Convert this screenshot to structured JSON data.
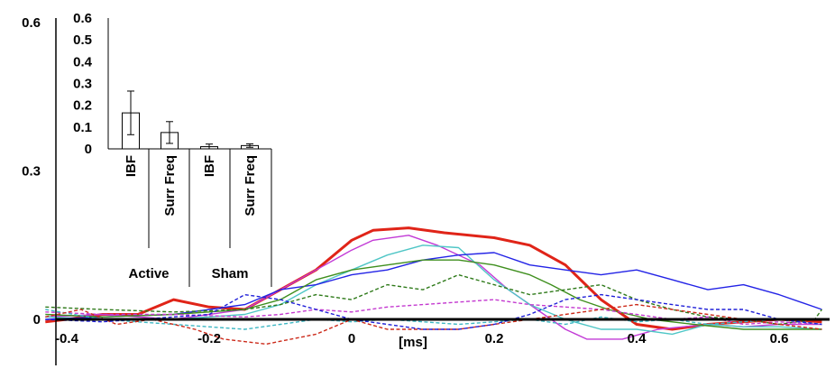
{
  "chart_data": [
    {
      "type": "line",
      "title": "",
      "xlabel": "[ms]",
      "ylabel": "",
      "xlim": [
        -0.43,
        0.66
      ],
      "ylim": [
        -0.12,
        0.6
      ],
      "x_ticks": [
        "-0.4",
        "-0.2",
        "0",
        "0.2",
        "0.4",
        "0.6"
      ],
      "y_ticks": [
        "0",
        "0.3",
        "0.6"
      ],
      "grid": false,
      "colors": {
        "red": "#e02418",
        "magenta": "#c23ad6",
        "cyan": "#4fc6c6",
        "blue": "#2323e6",
        "green": "#3f8f1e",
        "darkgreen": "#2f7a1a",
        "purple": "#c43ad0",
        "lightcyan": "#3fb8c4",
        "darkred": "#cc2a1a",
        "bluedash": "#2020d8"
      },
      "series": [
        {
          "color": "red",
          "dash": false,
          "width": 3,
          "x": [
            -0.43,
            -0.4,
            -0.35,
            -0.3,
            -0.25,
            -0.2,
            -0.15,
            -0.1,
            -0.05,
            0,
            0.03,
            0.08,
            0.13,
            0.2,
            0.25,
            0.3,
            0.35,
            0.4,
            0.45,
            0.5,
            0.55,
            0.6,
            0.66
          ],
          "y": [
            -0.005,
            0.0,
            0.01,
            0.01,
            0.04,
            0.025,
            0.02,
            0.06,
            0.1,
            0.16,
            0.18,
            0.185,
            0.175,
            0.165,
            0.15,
            0.11,
            0.04,
            -0.01,
            -0.02,
            -0.01,
            -0.005,
            0.0,
            -0.005
          ]
        },
        {
          "color": "magenta",
          "dash": false,
          "width": 1.4,
          "x": [
            -0.43,
            -0.35,
            -0.25,
            -0.15,
            -0.1,
            -0.05,
            0,
            0.03,
            0.08,
            0.12,
            0.18,
            0.22,
            0.26,
            0.3,
            0.33,
            0.38,
            0.43,
            0.5,
            0.55,
            0.6,
            0.66
          ],
          "y": [
            0.005,
            0.01,
            0.0,
            0.02,
            0.06,
            0.1,
            0.14,
            0.16,
            0.17,
            0.15,
            0.11,
            0.06,
            0.02,
            -0.02,
            -0.04,
            -0.04,
            -0.02,
            -0.01,
            -0.015,
            -0.01,
            -0.01
          ]
        },
        {
          "color": "cyan",
          "dash": false,
          "width": 1.4,
          "x": [
            -0.43,
            -0.35,
            -0.25,
            -0.15,
            -0.1,
            -0.05,
            0,
            0.05,
            0.1,
            0.15,
            0.2,
            0.25,
            0.3,
            0.35,
            0.4,
            0.45,
            0.5,
            0.55,
            0.6,
            0.66
          ],
          "y": [
            0.005,
            0.0,
            0.0,
            0.01,
            0.03,
            0.07,
            0.1,
            0.13,
            0.15,
            0.145,
            0.08,
            0.03,
            0.0,
            -0.02,
            -0.02,
            -0.03,
            -0.01,
            -0.015,
            -0.015,
            -0.02
          ]
        },
        {
          "color": "blue",
          "dash": false,
          "width": 1.4,
          "x": [
            -0.43,
            -0.35,
            -0.25,
            -0.15,
            -0.1,
            -0.05,
            0,
            0.05,
            0.1,
            0.15,
            0.2,
            0.25,
            0.3,
            0.35,
            0.4,
            0.45,
            0.5,
            0.55,
            0.6,
            0.66
          ],
          "y": [
            0.0,
            0.005,
            0.01,
            0.03,
            0.06,
            0.07,
            0.09,
            0.1,
            0.12,
            0.13,
            0.135,
            0.11,
            0.1,
            0.09,
            0.1,
            0.08,
            0.06,
            0.07,
            0.05,
            0.02
          ]
        },
        {
          "color": "green",
          "dash": false,
          "width": 1.4,
          "x": [
            -0.43,
            -0.35,
            -0.25,
            -0.15,
            -0.1,
            -0.05,
            0,
            0.05,
            0.1,
            0.15,
            0.2,
            0.25,
            0.28,
            0.32,
            0.36,
            0.42,
            0.48,
            0.55,
            0.6,
            0.66
          ],
          "y": [
            0.01,
            0.005,
            0.01,
            0.02,
            0.04,
            0.08,
            0.1,
            0.11,
            0.12,
            0.12,
            0.11,
            0.09,
            0.07,
            0.04,
            0.02,
            0.0,
            -0.01,
            -0.02,
            -0.02,
            -0.02
          ]
        },
        {
          "color": "darkgreen",
          "dash": true,
          "width": 1.4,
          "x": [
            -0.43,
            -0.35,
            -0.25,
            -0.15,
            -0.1,
            -0.05,
            0,
            0.05,
            0.1,
            0.15,
            0.2,
            0.25,
            0.3,
            0.35,
            0.4,
            0.45,
            0.5,
            0.55,
            0.6,
            0.65,
            0.66
          ],
          "y": [
            0.025,
            0.02,
            0.015,
            0.02,
            0.03,
            0.05,
            0.04,
            0.07,
            0.06,
            0.09,
            0.07,
            0.05,
            0.06,
            0.07,
            0.04,
            0.02,
            0.005,
            0.0,
            -0.01,
            0.0,
            0.02
          ]
        },
        {
          "color": "purple",
          "dash": true,
          "width": 1.4,
          "x": [
            -0.43,
            -0.35,
            -0.25,
            -0.15,
            -0.1,
            -0.05,
            0,
            0.05,
            0.1,
            0.15,
            0.2,
            0.25,
            0.3,
            0.35,
            0.4,
            0.45,
            0.5,
            0.55,
            0.6,
            0.66
          ],
          "y": [
            0.015,
            0.01,
            0.01,
            0.005,
            0.01,
            0.02,
            0.015,
            0.025,
            0.03,
            0.035,
            0.04,
            0.03,
            0.025,
            0.02,
            0.01,
            0.0,
            0.005,
            -0.01,
            -0.005,
            -0.01
          ]
        },
        {
          "color": "lightcyan",
          "dash": true,
          "width": 1.4,
          "x": [
            -0.43,
            -0.35,
            -0.25,
            -0.15,
            -0.1,
            -0.05,
            0,
            0.05,
            0.1,
            0.15,
            0.2,
            0.25,
            0.3,
            0.35,
            0.4,
            0.45,
            0.5,
            0.55,
            0.6,
            0.66
          ],
          "y": [
            0.02,
            0.0,
            -0.01,
            -0.02,
            -0.01,
            0.0,
            -0.005,
            0.0,
            -0.005,
            -0.01,
            -0.005,
            0.0,
            -0.01,
            0.005,
            -0.005,
            0.0,
            -0.01,
            -0.005,
            0.0,
            -0.01
          ]
        },
        {
          "color": "darkred",
          "dash": true,
          "width": 1.4,
          "x": [
            -0.43,
            -0.38,
            -0.33,
            -0.28,
            -0.22,
            -0.18,
            -0.12,
            -0.05,
            0,
            0.05,
            0.1,
            0.15,
            0.2,
            0.25,
            0.3,
            0.35,
            0.4,
            0.45,
            0.5,
            0.55,
            0.6,
            0.66
          ],
          "y": [
            0.005,
            0.02,
            -0.01,
            0.0,
            -0.02,
            -0.04,
            -0.05,
            -0.03,
            0.0,
            -0.02,
            -0.02,
            -0.02,
            -0.01,
            0.0,
            0.01,
            0.02,
            0.03,
            0.02,
            0.01,
            0.0,
            -0.01,
            -0.02
          ]
        },
        {
          "color": "bluedash",
          "dash": true,
          "width": 1.4,
          "x": [
            -0.43,
            -0.35,
            -0.25,
            -0.2,
            -0.15,
            -0.1,
            -0.05,
            0,
            0.05,
            0.1,
            0.15,
            0.2,
            0.25,
            0.3,
            0.35,
            0.4,
            0.45,
            0.5,
            0.55,
            0.6,
            0.66
          ],
          "y": [
            0.0,
            -0.005,
            0.005,
            0.01,
            0.05,
            0.04,
            0.02,
            0.0,
            -0.01,
            -0.02,
            -0.02,
            -0.01,
            0.01,
            0.04,
            0.05,
            0.04,
            0.03,
            0.02,
            0.02,
            0.0,
            -0.01
          ]
        }
      ]
    },
    {
      "type": "bar",
      "title": "",
      "xlabel": "",
      "ylabel": "",
      "ylim": [
        0,
        0.6
      ],
      "y_ticks": [
        "0",
        "0.1",
        "0.2",
        "0.3",
        "0.4",
        "0.5",
        "0.6"
      ],
      "categories": [
        "IBF",
        "Surr Freq",
        "IBF",
        "Surr Freq"
      ],
      "groups": [
        "Active",
        "Sham"
      ],
      "values": [
        0.165,
        0.075,
        0.01,
        0.015
      ],
      "errors": [
        0.1,
        0.05,
        0.012,
        0.008
      ],
      "bar_fill": "#ffffff",
      "bar_stroke": "#000000"
    }
  ]
}
